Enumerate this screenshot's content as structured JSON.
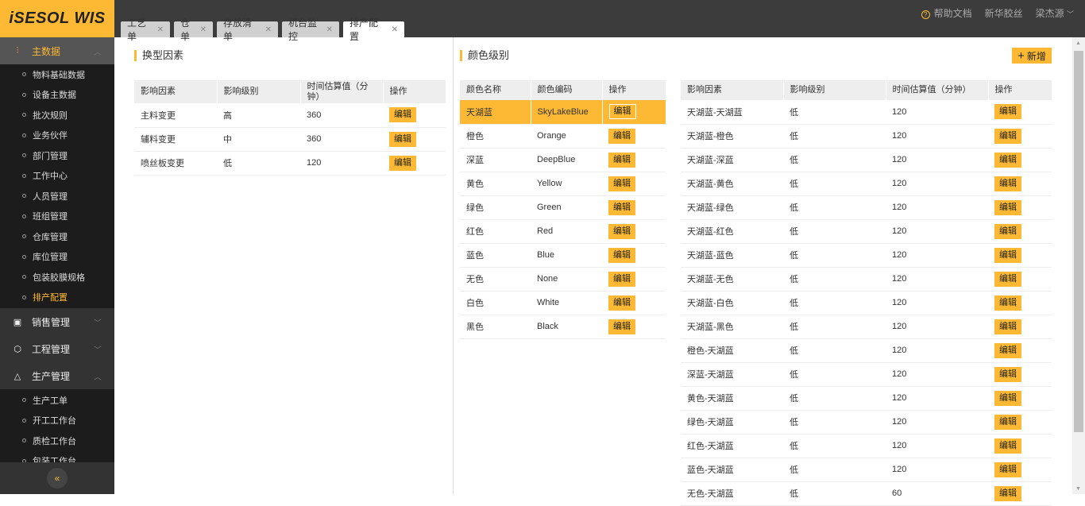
{
  "app": {
    "logo": "iSESOL WIS"
  },
  "sidebar": {
    "groups": [
      {
        "label": "主数据",
        "icon": "chart-icon",
        "expanded": true,
        "items": [
          "物料基础数据",
          "设备主数据",
          "批次规则",
          "业务伙伴",
          "部门管理",
          "工作中心",
          "人员管理",
          "班组管理",
          "仓库管理",
          "库位管理",
          "包装胶膜规格",
          "排产配置"
        ],
        "active_item": "排产配置"
      },
      {
        "label": "销售管理",
        "icon": "clipboard-icon",
        "expanded": false
      },
      {
        "label": "工程管理",
        "icon": "cube-icon",
        "expanded": false
      },
      {
        "label": "生产管理",
        "icon": "triangle-icon",
        "expanded": true,
        "items": [
          "生产工单",
          "开工工作台",
          "质检工作台",
          "包装工作台"
        ]
      }
    ],
    "collapse": "«"
  },
  "tabs": [
    {
      "label": "工艺单"
    },
    {
      "label": "仓单"
    },
    {
      "label": "存放清单"
    },
    {
      "label": "机台监控"
    },
    {
      "label": "排产配置",
      "active": true
    }
  ],
  "header": {
    "help": "帮助文档",
    "company": "新华胶丝",
    "user": "梁杰源"
  },
  "left_panel": {
    "title": "换型因素",
    "columns": [
      "影响因素",
      "影响级别",
      "时间估算值（分钟）",
      "操作"
    ],
    "rows": [
      [
        "主料变更",
        "高",
        "360",
        "编辑"
      ],
      [
        "辅料变更",
        "中",
        "360",
        "编辑"
      ],
      [
        "喷丝板变更",
        "低",
        "120",
        "编辑"
      ]
    ]
  },
  "right_panel": {
    "title": "颜色级别",
    "add_button": "新增",
    "color_table": {
      "columns": [
        "颜色名称",
        "颜色编码",
        "操作"
      ],
      "selected": 0,
      "rows": [
        [
          "天湖蓝",
          "SkyLakeBlue",
          "编辑"
        ],
        [
          "橙色",
          "Orange",
          "编辑"
        ],
        [
          "深蓝",
          "DeepBlue",
          "编辑"
        ],
        [
          "黄色",
          "Yellow",
          "编辑"
        ],
        [
          "绿色",
          "Green",
          "编辑"
        ],
        [
          "红色",
          "Red",
          "编辑"
        ],
        [
          "蓝色",
          "Blue",
          "编辑"
        ],
        [
          "无色",
          "None",
          "编辑"
        ],
        [
          "白色",
          "White",
          "编辑"
        ],
        [
          "黑色",
          "Black",
          "编辑"
        ]
      ]
    },
    "factor_table": {
      "columns": [
        "影响因素",
        "影响级别",
        "时间估算值（分钟）",
        "操作"
      ],
      "rows": [
        [
          "天湖蓝-天湖蓝",
          "低",
          "120",
          "编辑"
        ],
        [
          "天湖蓝-橙色",
          "低",
          "120",
          "编辑"
        ],
        [
          "天湖蓝-深蓝",
          "低",
          "120",
          "编辑"
        ],
        [
          "天湖蓝-黄色",
          "低",
          "120",
          "编辑"
        ],
        [
          "天湖蓝-绿色",
          "低",
          "120",
          "编辑"
        ],
        [
          "天湖蓝-红色",
          "低",
          "120",
          "编辑"
        ],
        [
          "天湖蓝-蓝色",
          "低",
          "120",
          "编辑"
        ],
        [
          "天湖蓝-无色",
          "低",
          "120",
          "编辑"
        ],
        [
          "天湖蓝-白色",
          "低",
          "120",
          "编辑"
        ],
        [
          "天湖蓝-黑色",
          "低",
          "120",
          "编辑"
        ],
        [
          "橙色-天湖蓝",
          "低",
          "120",
          "编辑"
        ],
        [
          "深蓝-天湖蓝",
          "低",
          "120",
          "编辑"
        ],
        [
          "黄色-天湖蓝",
          "低",
          "120",
          "编辑"
        ],
        [
          "绿色-天湖蓝",
          "低",
          "120",
          "编辑"
        ],
        [
          "红色-天湖蓝",
          "低",
          "120",
          "编辑"
        ],
        [
          "蓝色-天湖蓝",
          "低",
          "120",
          "编辑"
        ],
        [
          "无色-天湖蓝",
          "低",
          "60",
          "编辑"
        ]
      ]
    }
  },
  "colors": {
    "accent": "#fdb933",
    "sidebar": "#1c1c1c",
    "topbar": "#3c3c3c"
  }
}
